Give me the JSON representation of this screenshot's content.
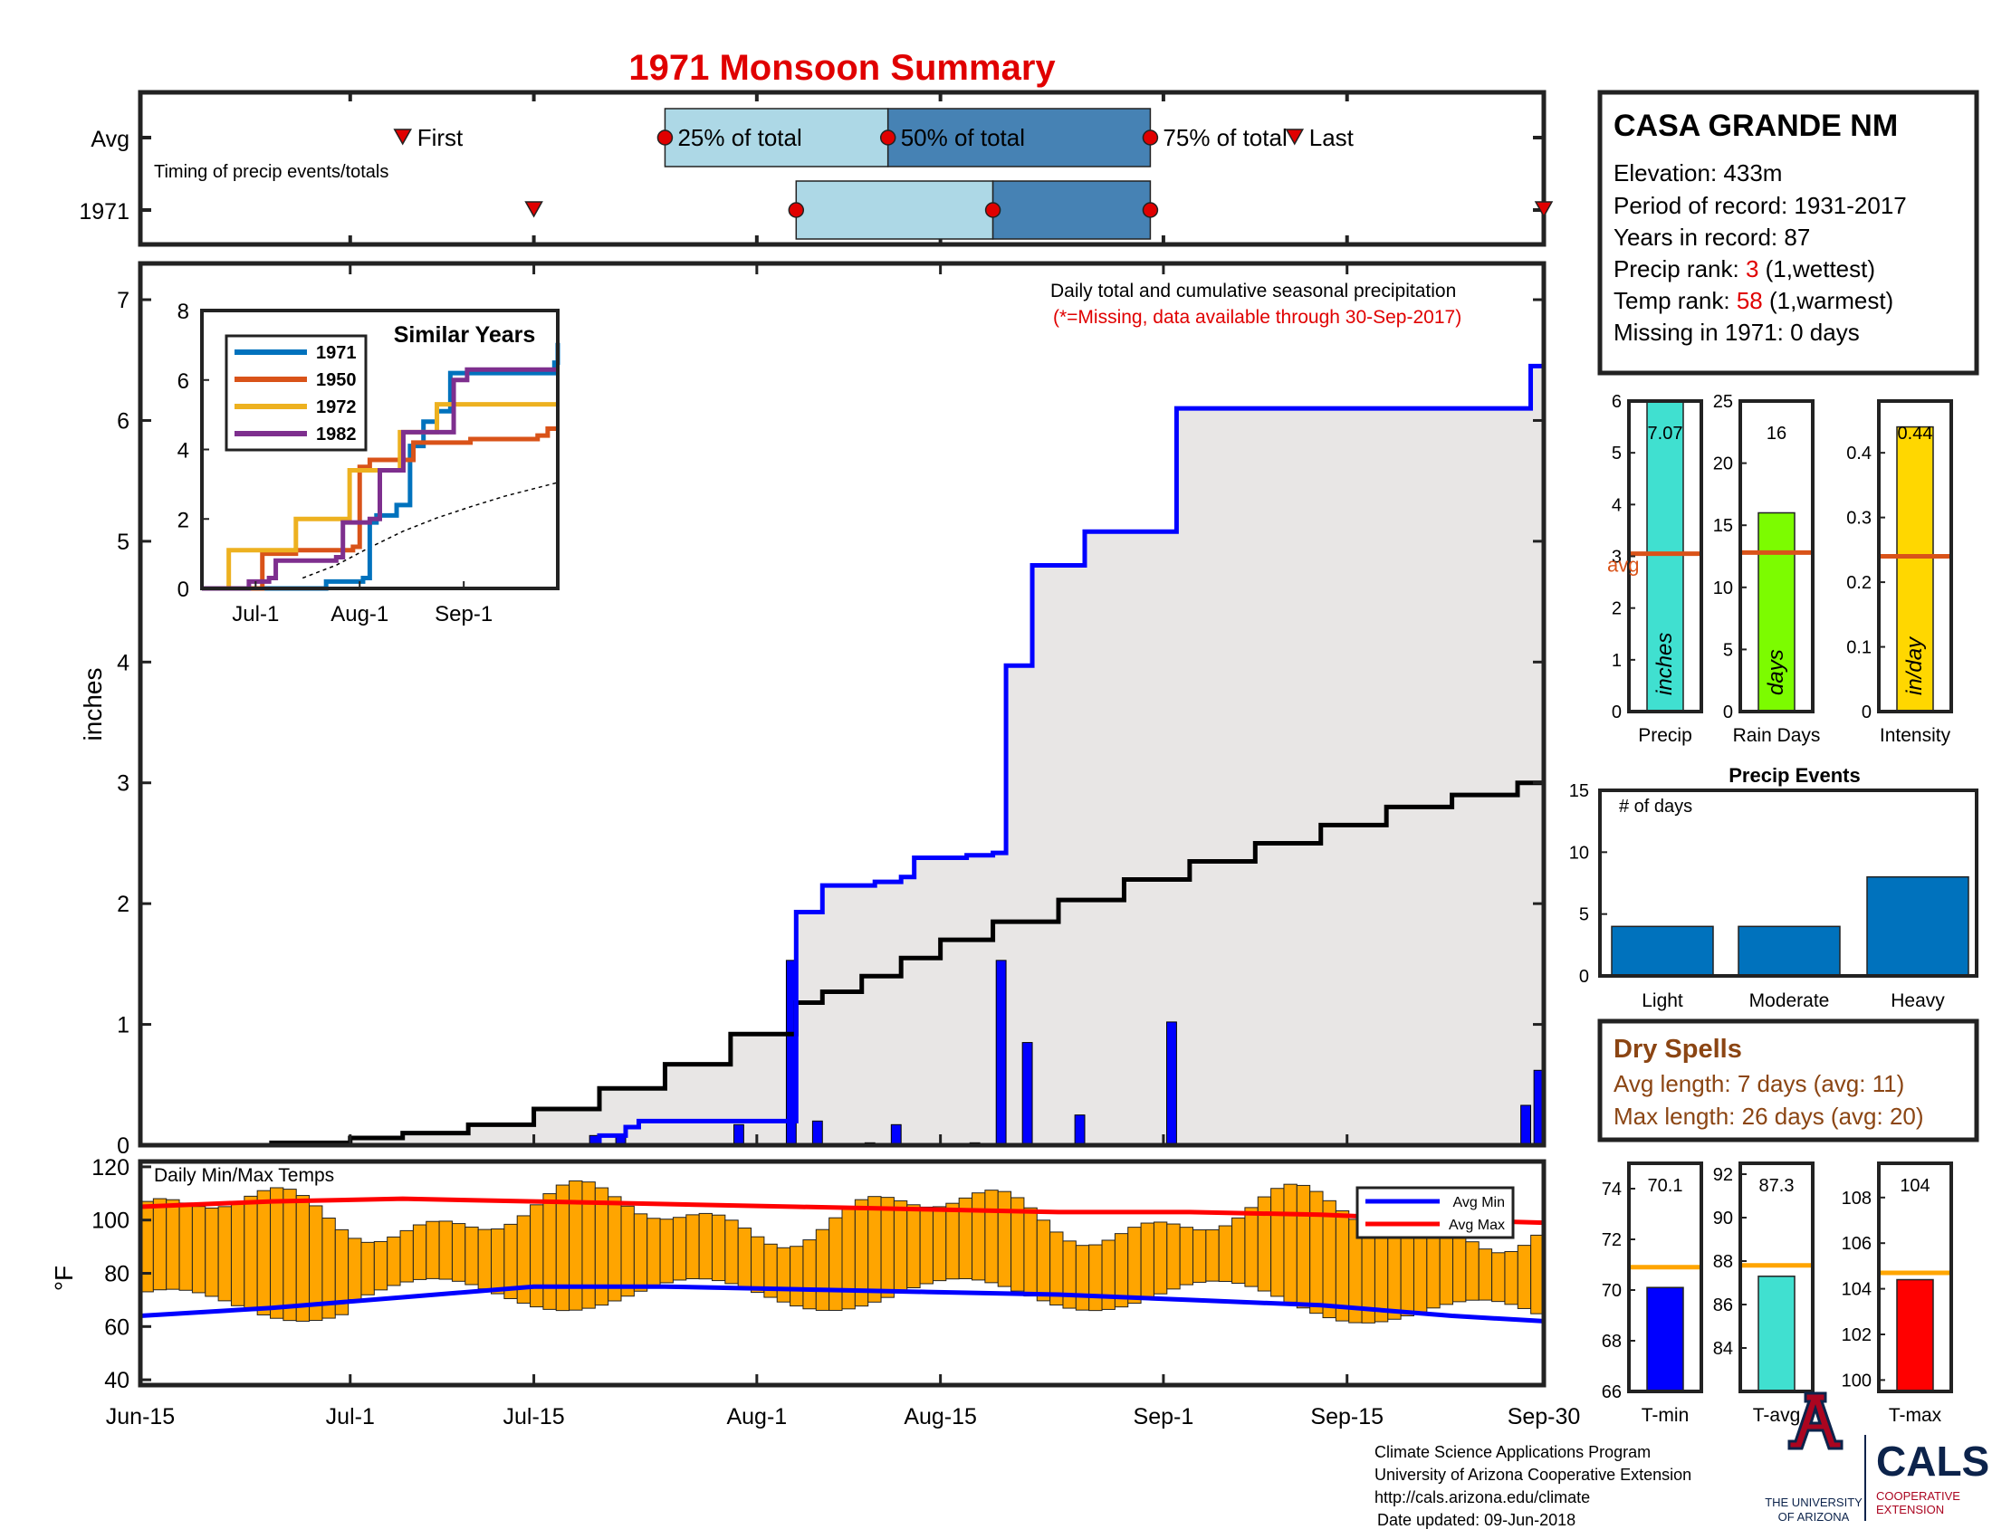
{
  "colors": {
    "light_blue": "#add8e6",
    "mid_blue": "#4682b4",
    "marker_red": "#e00000",
    "cum_blue": "#0000ff",
    "green": "#228b22",
    "brown": "#b8860b",
    "avg_gray": "#e8e6e5",
    "bar_orange": "#ffa500",
    "temp_min": "#0000ff",
    "temp_max": "#ff0000",
    "cyan": "#40e0d0",
    "lime": "#7cfc00",
    "gold": "#ffd700",
    "event_blue": "#0072bd",
    "rust": "#d95319",
    "dry_brown": "#8b4513",
    "ua_red": "#ab0520",
    "ua_navy": "#0c234b"
  },
  "title": "1971 Monsoon Summary",
  "timing": {
    "avg_label": "Avg",
    "year_label": "1971",
    "note": "Timing of precip events/totals",
    "first_label": "First",
    "p25_label": "25% of total",
    "p50_label": "50% of total",
    "p75_label": "75% of total",
    "last_label": "Last",
    "avg_days": {
      "first": 20,
      "p25": 40,
      "p50": 57,
      "p75": 77,
      "last": 88
    },
    "year_days": {
      "first": 30,
      "p25": 50,
      "p50": 65,
      "p75": 77,
      "last": 107
    }
  },
  "station": {
    "name": "CASA GRANDE NM",
    "elevation": "Elevation: 433m",
    "period": "Period of record: 1931-2017",
    "years": "Years in record: 87",
    "precip_rank_prefix": "Precip rank: ",
    "precip_rank_value": "3",
    "precip_rank_suffix": " (1,wettest)",
    "temp_rank_prefix": "Temp rank: ",
    "temp_rank_value": "58",
    "temp_rank_suffix": " (1,warmest)",
    "missing": "Missing in 1971: 0 days"
  },
  "main_chart": {
    "ylabel": "inches",
    "annotation": "Daily total and cumulative seasonal precipitation",
    "missing_note": "(*=Missing, data available through 30-Sep-2017)",
    "x_ticks": [
      {
        "day": 0,
        "label": "Jun-15"
      },
      {
        "day": 16,
        "label": "Jul-1"
      },
      {
        "day": 30,
        "label": "Jul-15"
      },
      {
        "day": 47,
        "label": "Aug-1"
      },
      {
        "day": 61,
        "label": "Aug-15"
      },
      {
        "day": 78,
        "label": "Sep-1"
      },
      {
        "day": 92,
        "label": "Sep-15"
      },
      {
        "day": 107,
        "label": "Sep-30"
      }
    ],
    "y_ticks": [
      0,
      1,
      2,
      3,
      4,
      5,
      6,
      7
    ],
    "ylim": [
      0,
      7.3
    ],
    "cumulative_1971": [
      [
        0,
        0
      ],
      [
        32,
        0
      ],
      [
        35,
        0.08
      ],
      [
        37,
        0.15
      ],
      [
        38,
        0.2
      ],
      [
        50,
        0.4
      ],
      [
        50,
        1.93
      ],
      [
        52,
        2.15
      ],
      [
        56,
        2.18
      ],
      [
        58,
        2.22
      ],
      [
        59,
        2.38
      ],
      [
        63,
        2.4
      ],
      [
        65,
        2.42
      ],
      [
        66,
        3.97
      ],
      [
        68,
        4.8
      ],
      [
        72,
        5.08
      ],
      [
        79,
        6.1
      ],
      [
        106,
        6.1
      ],
      [
        106,
        6.45
      ],
      [
        107,
        7.07
      ]
    ],
    "avg_cumulative": [
      [
        0,
        0
      ],
      [
        10,
        0.02
      ],
      [
        16,
        0.06
      ],
      [
        20,
        0.1
      ],
      [
        25,
        0.17
      ],
      [
        30,
        0.3
      ],
      [
        35,
        0.47
      ],
      [
        40,
        0.67
      ],
      [
        45,
        0.92
      ],
      [
        50,
        1.18
      ],
      [
        52,
        1.27
      ],
      [
        55,
        1.4
      ],
      [
        58,
        1.55
      ],
      [
        61,
        1.7
      ],
      [
        65,
        1.85
      ],
      [
        70,
        2.03
      ],
      [
        75,
        2.2
      ],
      [
        80,
        2.35
      ],
      [
        85,
        2.5
      ],
      [
        90,
        2.65
      ],
      [
        95,
        2.8
      ],
      [
        100,
        2.9
      ],
      [
        105,
        3.0
      ],
      [
        107,
        3.02
      ]
    ],
    "daily_bars": [
      [
        35,
        0.08
      ],
      [
        37,
        0.07
      ],
      [
        46,
        0.17
      ],
      [
        50,
        1.53
      ],
      [
        52,
        0.2
      ],
      [
        56,
        0.02
      ],
      [
        58,
        0.17
      ],
      [
        64,
        0.02
      ],
      [
        66,
        1.53
      ],
      [
        68,
        0.85
      ],
      [
        72,
        0.25
      ],
      [
        79,
        1.02
      ],
      [
        106,
        0.33
      ],
      [
        107,
        0.62
      ]
    ]
  },
  "similar_years": {
    "title": "Similar Years",
    "legend": [
      "1971",
      "1950",
      "1972",
      "1982"
    ],
    "x_ticks": [
      {
        "day": 16,
        "label": "Jul-1"
      },
      {
        "day": 47,
        "label": "Aug-1"
      },
      {
        "day": 78,
        "label": "Sep-1"
      }
    ],
    "y_ticks": [
      0,
      2,
      4,
      6,
      8
    ],
    "ylim": [
      0,
      8
    ],
    "series": [
      {
        "name": "1971",
        "color": "#0072bd",
        "points": [
          [
            0,
            0
          ],
          [
            35,
            0
          ],
          [
            37,
            0.2
          ],
          [
            48,
            0.3
          ],
          [
            50,
            1.9
          ],
          [
            52,
            2.1
          ],
          [
            58,
            2.4
          ],
          [
            62,
            4.1
          ],
          [
            66,
            4.8
          ],
          [
            70,
            5.1
          ],
          [
            74,
            6.2
          ],
          [
            104,
            6.2
          ],
          [
            105,
            6.5
          ],
          [
            106,
            7.07
          ]
        ]
      },
      {
        "name": "1950",
        "color": "#d95319",
        "points": [
          [
            0,
            0
          ],
          [
            16,
            0
          ],
          [
            18,
            1.0
          ],
          [
            25,
            1.0
          ],
          [
            28,
            1.1
          ],
          [
            45,
            1.2
          ],
          [
            47,
            3.5
          ],
          [
            50,
            3.7
          ],
          [
            60,
            3.7
          ],
          [
            63,
            4.2
          ],
          [
            80,
            4.3
          ],
          [
            100,
            4.4
          ],
          [
            103,
            4.6
          ],
          [
            106,
            4.6
          ]
        ]
      },
      {
        "name": "1972",
        "color": "#edb120",
        "points": [
          [
            0,
            0
          ],
          [
            6,
            0
          ],
          [
            8,
            1.1
          ],
          [
            26,
            1.1
          ],
          [
            28,
            2.0
          ],
          [
            42,
            2.0
          ],
          [
            44,
            3.4
          ],
          [
            57,
            3.4
          ],
          [
            59,
            4.5
          ],
          [
            67,
            4.5
          ],
          [
            70,
            5.3
          ],
          [
            106,
            5.3
          ]
        ]
      },
      {
        "name": "1982",
        "color": "#7e2f8e",
        "points": [
          [
            0,
            0
          ],
          [
            12,
            0
          ],
          [
            14,
            0.2
          ],
          [
            20,
            0.3
          ],
          [
            22,
            0.8
          ],
          [
            40,
            0.9
          ],
          [
            42,
            1.9
          ],
          [
            50,
            2.0
          ],
          [
            53,
            3.4
          ],
          [
            58,
            3.4
          ],
          [
            60,
            4.5
          ],
          [
            72,
            4.5
          ],
          [
            75,
            6.0
          ],
          [
            79,
            6.3
          ],
          [
            106,
            6.3
          ]
        ]
      }
    ],
    "avg_points": [
      [
        30,
        0.3
      ],
      [
        40,
        0.67
      ],
      [
        50,
        1.18
      ],
      [
        60,
        1.65
      ],
      [
        70,
        2.03
      ],
      [
        80,
        2.35
      ],
      [
        90,
        2.65
      ],
      [
        100,
        2.9
      ],
      [
        106,
        3.05
      ]
    ]
  },
  "stat_bars": [
    {
      "label": "Precip",
      "unit": "inches",
      "value": 7.07,
      "value_label": "7.07",
      "avg": 3.05,
      "avg_label": "avg",
      "ylim": [
        0,
        6
      ],
      "ticks": [
        0,
        1,
        2,
        3,
        4,
        5,
        6
      ],
      "color": "#40e0d0"
    },
    {
      "label": "Rain Days",
      "unit": "days",
      "value": 16,
      "value_label": "16",
      "avg": 12.8,
      "ylim": [
        0,
        25
      ],
      "ticks": [
        0,
        5,
        10,
        15,
        20,
        25
      ],
      "color": "#7cfc00"
    },
    {
      "label": "Intensity",
      "unit": "in/day",
      "value": 0.44,
      "value_label": "0.44",
      "avg": 0.24,
      "ylim": [
        0,
        0.48
      ],
      "ticks": [
        0,
        0.1,
        0.2,
        0.3,
        0.4
      ],
      "color": "#ffd700"
    }
  ],
  "precip_events": {
    "title": "Precip Events",
    "ylabel": "# of days",
    "ylim": [
      0,
      15
    ],
    "ticks": [
      0,
      5,
      10,
      15
    ],
    "categories": [
      "Light",
      "Moderate",
      "Heavy"
    ],
    "values": [
      4,
      4,
      8
    ]
  },
  "dry_spells": {
    "title": "Dry Spells",
    "avg_length": "Avg length: 7 days (avg: 11)",
    "max_length": "Max length: 26 days (avg: 20)"
  },
  "temps": {
    "title": "Daily Min/Max Temps",
    "ylabel": "°F",
    "ylim": [
      38,
      122
    ],
    "ticks": [
      40,
      60,
      80,
      100,
      120
    ],
    "legend_min": "Avg Min",
    "legend_max": "Avg Max",
    "avg_max_points": [
      [
        0,
        105
      ],
      [
        10,
        107
      ],
      [
        20,
        108
      ],
      [
        30,
        107
      ],
      [
        40,
        106
      ],
      [
        50,
        105
      ],
      [
        60,
        104
      ],
      [
        70,
        103
      ],
      [
        80,
        103
      ],
      [
        90,
        102
      ],
      [
        100,
        100
      ],
      [
        107,
        99
      ]
    ],
    "avg_min_points": [
      [
        0,
        64
      ],
      [
        10,
        67
      ],
      [
        20,
        71
      ],
      [
        30,
        75
      ],
      [
        40,
        75
      ],
      [
        50,
        74
      ],
      [
        60,
        73
      ],
      [
        70,
        72
      ],
      [
        80,
        70
      ],
      [
        90,
        68
      ],
      [
        100,
        64
      ],
      [
        107,
        62
      ]
    ]
  },
  "temp_stats": [
    {
      "label": "T-min",
      "value": 70.1,
      "value_label": "70.1",
      "avg": 70.9,
      "ylim": [
        66,
        75
      ],
      "ticks": [
        66,
        68,
        70,
        72,
        74
      ],
      "color": "#0000ff"
    },
    {
      "label": "T-avg",
      "value": 87.3,
      "value_label": "87.3",
      "avg": 87.8,
      "ylim": [
        82,
        92.5
      ],
      "ticks": [
        84,
        86,
        88,
        90,
        92
      ],
      "color": "#40e0d0"
    },
    {
      "label": "T-max",
      "value": 104.4,
      "value_label": "104",
      "avg": 104.7,
      "ylim": [
        99.5,
        109.5
      ],
      "ticks": [
        100,
        102,
        104,
        106,
        108
      ],
      "color": "#ff0000"
    }
  ],
  "footer": {
    "line1": "Climate Science Applications Program",
    "line2": "University of Arizona Cooperative Extension",
    "line3": "http://cals.arizona.edu/climate",
    "line4": "Date updated: 09-Jun-2018",
    "ua_line1": "THE UNIVERSITY",
    "ua_line2": "OF ARIZONA",
    "cals": "CALS",
    "cals_sub1": "COOPERATIVE",
    "cals_sub2": "EXTENSION"
  }
}
